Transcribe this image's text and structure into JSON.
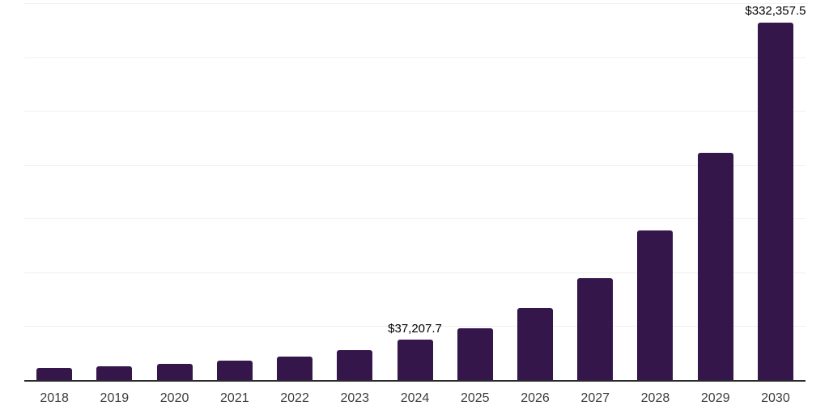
{
  "chart_data": {
    "type": "bar",
    "categories": [
      "2018",
      "2019",
      "2020",
      "2021",
      "2022",
      "2023",
      "2024",
      "2025",
      "2026",
      "2027",
      "2028",
      "2029",
      "2030"
    ],
    "values": [
      11100,
      13000,
      15300,
      18300,
      21900,
      28100,
      37207.7,
      48000,
      66600,
      94300,
      138600,
      211400,
      332357.5
    ],
    "value_labels": [
      "",
      "",
      "",
      "",
      "",
      "",
      "$37,207.7",
      "",
      "",
      "",
      "",
      "",
      "$332,357.5"
    ],
    "ylim": [
      0,
      350000
    ],
    "grid_step": 50000,
    "grid": "on",
    "legend": "none",
    "colors": {
      "bar": "#35164B",
      "grid": "#f0f0f0",
      "axis": "#2b2b2b",
      "value_label": "#000000",
      "tick_label": "#3c3c3c",
      "background": "#ffffff"
    }
  }
}
